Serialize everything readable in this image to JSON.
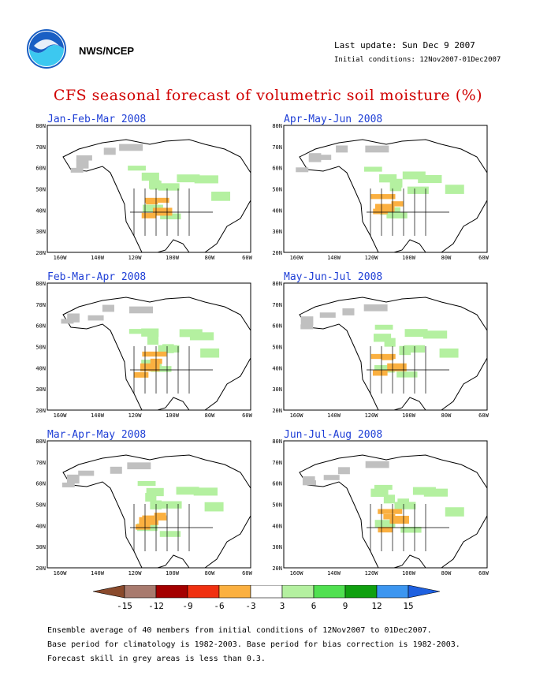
{
  "header": {
    "org": "NWS/NCEP",
    "last_update": "Last update: Sun Dec 9 2007",
    "initial_conditions": "Initial conditions: 12Nov2007-01Dec2007"
  },
  "title": "CFS seasonal forecast of volumetric soil moisture (%)",
  "panels": [
    {
      "label": "Jan-Feb-Mar 2008"
    },
    {
      "label": "Apr-May-Jun 2008"
    },
    {
      "label": "Feb-Mar-Apr 2008"
    },
    {
      "label": "May-Jun-Jul 2008"
    },
    {
      "label": "Mar-Apr-May 2008"
    },
    {
      "label": "Jun-Jul-Aug 2008"
    }
  ],
  "axes": {
    "lat_ticks": [
      "80N",
      "70N",
      "60N",
      "50N",
      "40N",
      "30N",
      "20N"
    ],
    "lon_ticks": [
      "160W",
      "140W",
      "120W",
      "100W",
      "80W",
      "60W"
    ]
  },
  "colorbar": {
    "labels": [
      "-15",
      "-12",
      "-9",
      "-6",
      "-3",
      "3",
      "6",
      "9",
      "12",
      "15"
    ],
    "colors": [
      "#8a4a2c",
      "#a87a6e",
      "#a40000",
      "#f03010",
      "#fbb040",
      "#ffffff",
      "#b4f0a0",
      "#50e050",
      "#10a010",
      "#3c96f0",
      "#1e60e0"
    ]
  },
  "notes": [
    "Ensemble average of 40 members from initial conditions of 12Nov2007 to 01Dec2007.",
    "Base period for climatology is 1982-2003. Base period for bias correction is 1982-2003.",
    "Forecast skill in grey areas is less than 0.3."
  ],
  "colors": {
    "title": "#d00000",
    "panel_title": "#1f3fd6",
    "grey_low_skill": "#c0c0c0"
  }
}
